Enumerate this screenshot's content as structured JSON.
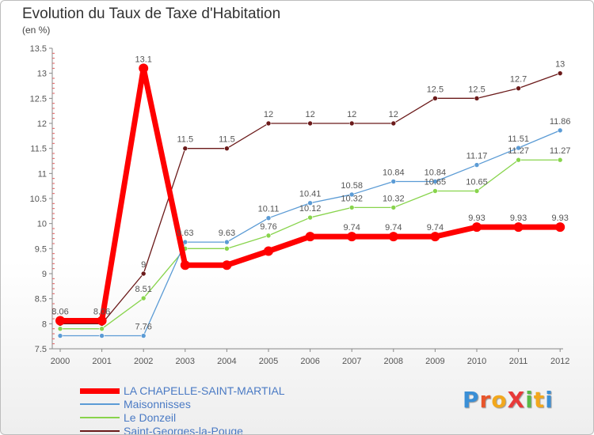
{
  "header": {
    "title": "Evolution du Taux de Taxe d'Habitation",
    "unit": "(en %)"
  },
  "logo": {
    "text": "ProXiti"
  },
  "chart_data": {
    "type": "line",
    "x": [
      "2000",
      "2001",
      "2002",
      "2003",
      "2004",
      "2005",
      "2006",
      "2007",
      "2008",
      "2009",
      "2010",
      "2011",
      "2012"
    ],
    "ylim": [
      7.5,
      13.5
    ],
    "yticks": [
      "7.5",
      "8",
      "8.5",
      "9",
      "9.5",
      "10",
      "10.5",
      "11",
      "11.5",
      "12",
      "12.5",
      "13",
      "13.5"
    ],
    "grid": false,
    "legend_position": "bottom-left",
    "series": [
      {
        "name": "LA CHAPELLE-SAINT-MARTIAL",
        "color": "#ff0000",
        "values": [
          8.06,
          8.06,
          13.1,
          9.17,
          9.17,
          9.45,
          9.74,
          9.74,
          9.74,
          9.74,
          9.93,
          9.93,
          9.93
        ],
        "labels": [
          "8.06",
          "8.06",
          "13.1",
          "9.17",
          "9.17",
          "9.45",
          "9.74",
          "9.74",
          "9.74",
          "9.74",
          "9.93",
          "9.93",
          "9.93"
        ],
        "show_labels": [
          true,
          true,
          true,
          false,
          false,
          false,
          false,
          true,
          true,
          true,
          true,
          true,
          true
        ]
      },
      {
        "name": "Maisonnisses",
        "color": "#5b9bd5",
        "values": [
          7.76,
          7.76,
          7.76,
          9.63,
          9.63,
          10.11,
          10.41,
          10.58,
          10.84,
          10.84,
          11.17,
          11.51,
          11.86
        ],
        "labels": [
          "7.76",
          "7.76",
          "7.76",
          "9.63",
          "9.63",
          "10.11",
          "10.41",
          "10.58",
          "10.84",
          "10.84",
          "11.17",
          "11.51",
          "11.86"
        ],
        "show_labels": [
          false,
          false,
          true,
          true,
          true,
          true,
          true,
          true,
          true,
          true,
          true,
          true,
          true
        ]
      },
      {
        "name": "Le Donzeil",
        "color": "#88d44c",
        "values": [
          7.9,
          7.9,
          8.51,
          9.5,
          9.5,
          9.76,
          10.12,
          10.32,
          10.32,
          10.65,
          10.65,
          11.27,
          11.27
        ],
        "labels": [
          "7.9",
          "7.9",
          "8.51",
          "9.5",
          "9.5",
          "9.76",
          "10.12",
          "10.32",
          "10.32",
          "10.65",
          "10.65",
          "11.27",
          "11.27"
        ],
        "show_labels": [
          false,
          false,
          true,
          false,
          false,
          true,
          true,
          true,
          true,
          true,
          true,
          true,
          true
        ]
      },
      {
        "name": "Saint-Georges-la-Pouge",
        "color": "#6b1a1a",
        "values": [
          8,
          8,
          9,
          11.5,
          11.5,
          12,
          12,
          12,
          12,
          12.5,
          12.5,
          12.7,
          13
        ],
        "labels": [
          "8",
          "8",
          "9",
          "11.5",
          "11.5",
          "12",
          "12",
          "12",
          "12",
          "12.5",
          "12.5",
          "12.7",
          "13"
        ],
        "show_labels": [
          false,
          false,
          true,
          true,
          true,
          true,
          true,
          true,
          true,
          true,
          true,
          true,
          true
        ]
      }
    ]
  }
}
